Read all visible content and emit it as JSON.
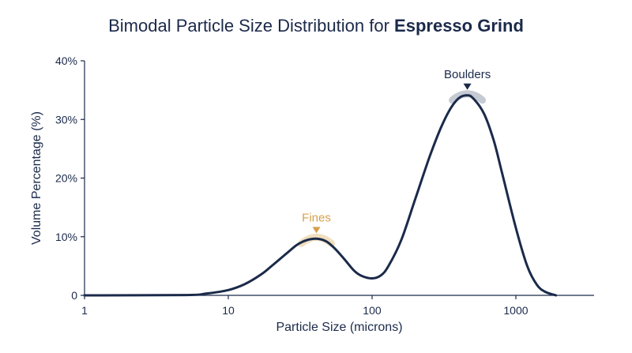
{
  "chart_data": {
    "type": "line",
    "title": "Bimodal Particle Size Distribution for",
    "title_bold": "Espresso Grind",
    "xlabel": "Particle Size (microns)",
    "ylabel": "Volume Percentage (%)",
    "x_scale": "log",
    "xlim": [
      1,
      3500
    ],
    "ylim": [
      0,
      40
    ],
    "x_ticks": [
      1,
      10,
      100,
      1000
    ],
    "x_tick_labels": [
      "1",
      "10",
      "100",
      "1000"
    ],
    "y_ticks": [
      0,
      10,
      20,
      30,
      40
    ],
    "y_tick_labels": [
      "0",
      "10%",
      "20%",
      "30%",
      "40%"
    ],
    "grid": false,
    "line_color": "#1b2a4a",
    "series": [
      {
        "points": [
          [
            1,
            0.0
          ],
          [
            5,
            0.05
          ],
          [
            7,
            0.3
          ],
          [
            10,
            0.9
          ],
          [
            13,
            1.9
          ],
          [
            17,
            3.6
          ],
          [
            20,
            5.0
          ],
          [
            25,
            7.0
          ],
          [
            30,
            8.6
          ],
          [
            35,
            9.4
          ],
          [
            41,
            9.65
          ],
          [
            48,
            9.2
          ],
          [
            55,
            8.0
          ],
          [
            65,
            6.0
          ],
          [
            75,
            4.2
          ],
          [
            85,
            3.3
          ],
          [
            100,
            2.9
          ],
          [
            115,
            3.4
          ],
          [
            130,
            5.0
          ],
          [
            160,
            9.5
          ],
          [
            200,
            16.5
          ],
          [
            250,
            23.5
          ],
          [
            300,
            28.5
          ],
          [
            350,
            31.8
          ],
          [
            400,
            33.6
          ],
          [
            450,
            34.1
          ],
          [
            500,
            33.7
          ],
          [
            600,
            31.0
          ],
          [
            700,
            26.5
          ],
          [
            800,
            21.0
          ],
          [
            1000,
            11.5
          ],
          [
            1200,
            5.0
          ],
          [
            1400,
            1.8
          ],
          [
            1600,
            0.6
          ],
          [
            1900,
            0.0
          ]
        ]
      }
    ],
    "annotations": [
      {
        "label": "Fines",
        "x": 41,
        "y": 9.65,
        "color": "#d4a04a",
        "highlight": "#f1dfbd"
      },
      {
        "label": "Boulders",
        "x": 460,
        "y": 34.1,
        "color": "#1b2a4a",
        "highlight": "#c5cad3"
      }
    ]
  }
}
